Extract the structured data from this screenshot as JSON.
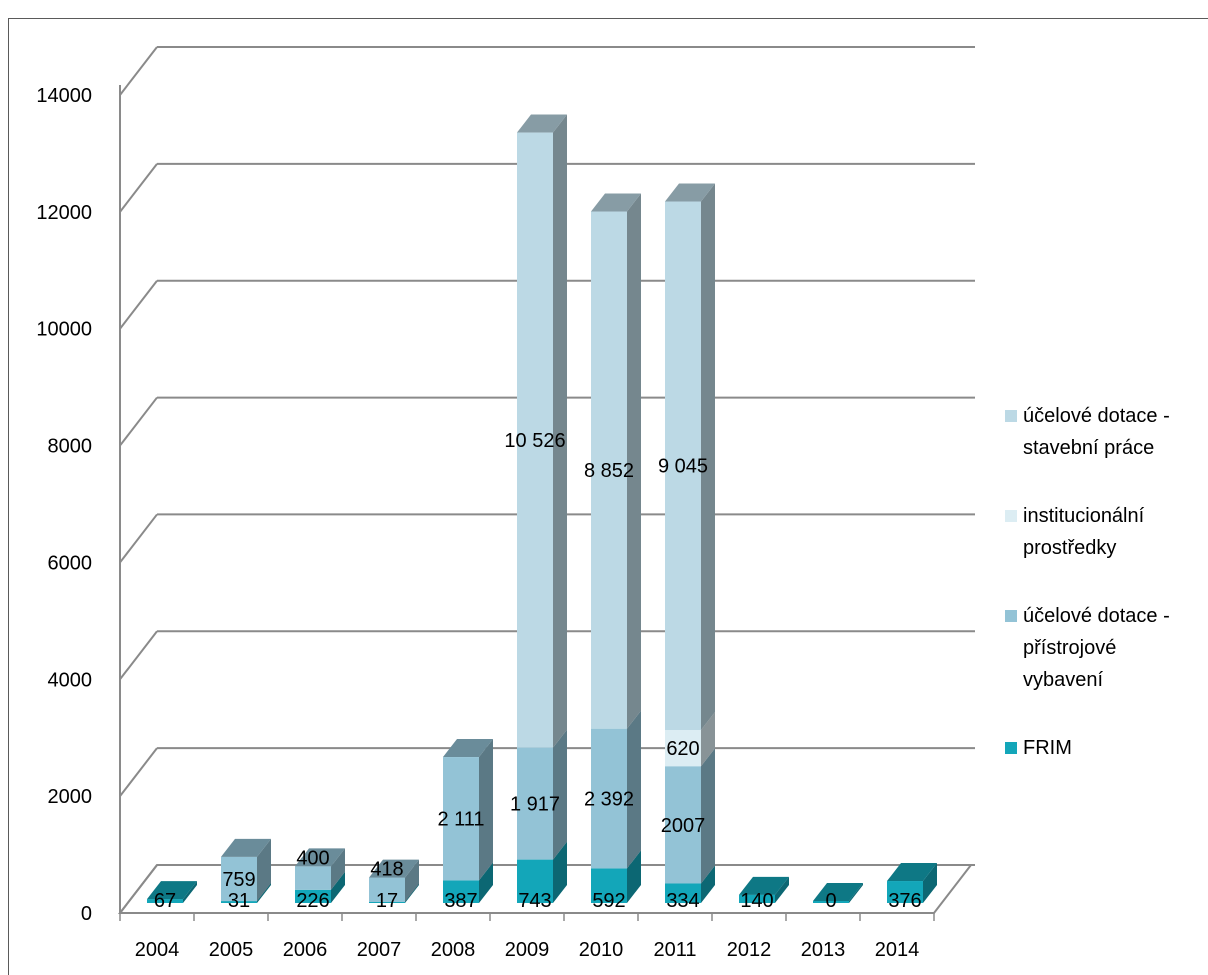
{
  "chart_data": {
    "type": "bar",
    "stacked": true,
    "three_d": true,
    "title": "",
    "xlabel": "",
    "ylabel": "",
    "ylim": [
      0,
      14000
    ],
    "yticks": [
      "0",
      "2000",
      "4000",
      "6000",
      "8000",
      "10000",
      "12000",
      "14000"
    ],
    "categories": [
      "2004",
      "2005",
      "2006",
      "2007",
      "2008",
      "2009",
      "2010",
      "2011",
      "2012",
      "2013",
      "2014"
    ],
    "series": [
      {
        "name": "FRIM",
        "color": "#13a6b9",
        "values": [
          67,
          31,
          226,
          17,
          387,
          743,
          592,
          334,
          140,
          0,
          376
        ],
        "labels": [
          "67",
          "31",
          "226",
          "17",
          "387",
          "743",
          "592",
          "334",
          "140",
          "0",
          "376"
        ]
      },
      {
        "name": "účelové dotace - přístrojové vybavení",
        "color": "#93c3d6",
        "values": [
          0,
          759,
          400,
          418,
          2111,
          1917,
          2392,
          2007,
          0,
          0,
          0
        ],
        "labels": [
          "",
          "759",
          "400",
          "418",
          "2 111",
          "1 917",
          "2 392",
          "2007",
          "",
          "",
          ""
        ]
      },
      {
        "name": "institucionální prostředky",
        "color": "#dcedf3",
        "values": [
          0,
          0,
          0,
          0,
          0,
          0,
          0,
          620,
          0,
          0,
          0
        ],
        "labels": [
          "",
          "",
          "",
          "",
          "",
          "",
          "",
          "620",
          "",
          "",
          ""
        ]
      },
      {
        "name": " účelové dotace - stavební práce",
        "color": "#bcd9e5",
        "values": [
          0,
          0,
          0,
          0,
          0,
          10526,
          8852,
          9045,
          0,
          0,
          0
        ],
        "labels": [
          "",
          "",
          "",
          "",
          "",
          "10 526",
          "8 852",
          "9 045",
          "",
          "",
          ""
        ]
      }
    ],
    "legend_position": "right",
    "grid": true
  },
  "legend": {
    "items": [
      {
        "label": " účelové dotace -\nstavební práce",
        "color": "#bcd9e5"
      },
      {
        "label": "institucionální\nprostředky",
        "color": "#dcedf3"
      },
      {
        "label": "účelové dotace -\npřístrojové\nvybavení",
        "color": "#93c3d6"
      },
      {
        "label": "FRIM",
        "color": "#13a6b9"
      }
    ]
  }
}
